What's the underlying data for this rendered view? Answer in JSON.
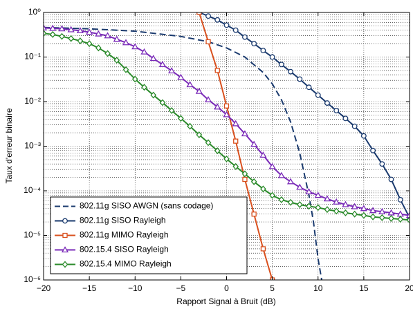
{
  "chart_data": {
    "type": "line",
    "x_label": "Rapport Signal à Bruit (dB)",
    "y_label": "Taux d'erreur binaire",
    "log_y": true,
    "grid": true,
    "minor_grid": true,
    "legend_loc": "lower left",
    "xlim": [
      -20,
      20
    ],
    "xticks": [
      {
        "value": -20,
        "label": "−20"
      },
      {
        "value": -15,
        "label": "−15"
      },
      {
        "value": -10,
        "label": "−10"
      },
      {
        "value": -5,
        "label": "−5"
      },
      0,
      5,
      10,
      15,
      20
    ],
    "ylim": [
      1e-06,
      1
    ],
    "yticks": [
      {
        "value": 1e-06,
        "label": "10⁻⁶"
      },
      {
        "value": 1e-05,
        "label": "10⁻⁵"
      },
      {
        "value": 0.0001,
        "label": "10⁻⁴"
      },
      {
        "value": 0.001,
        "label": "10⁻³"
      },
      {
        "value": 0.01,
        "label": "10⁻²"
      },
      {
        "value": 0.1,
        "label": "10⁻¹"
      },
      {
        "value": 1,
        "label": "10⁰"
      }
    ],
    "series": [
      {
        "name": "802.11g SISO AWGN (sans codage)",
        "color": "#1a3a6e",
        "dash": true,
        "marker": "none",
        "x": [
          -20,
          -15,
          -10,
          -5,
          -2,
          0,
          2,
          4,
          5,
          6,
          7,
          8,
          9,
          9.5,
          10,
          10.4
        ],
        "values": [
          0.46,
          0.43,
          0.38,
          0.29,
          0.22,
          0.16,
          0.1,
          0.045,
          0.025,
          0.011,
          0.0035,
          0.0007,
          8e-05,
          2e-05,
          3e-06,
          1e-06
        ]
      },
      {
        "name": "802.11g SISO Rayleigh",
        "color": "#1a3a6e",
        "dash": false,
        "marker": "circle",
        "x": [
          -3,
          -2,
          -1,
          0,
          1,
          2,
          3,
          4,
          5,
          6,
          7,
          8,
          9,
          10,
          11,
          12,
          13,
          14,
          15,
          16,
          17,
          18,
          19,
          20
        ],
        "values": [
          1,
          0.83,
          0.68,
          0.52,
          0.4,
          0.28,
          0.2,
          0.14,
          0.1,
          0.068,
          0.047,
          0.032,
          0.021,
          0.014,
          0.0093,
          0.0063,
          0.0042,
          0.0028,
          0.0017,
          0.0008,
          0.0004,
          0.00018,
          6.3e-05,
          2.5e-05
        ]
      },
      {
        "name": "802.11g MIMO Rayleigh",
        "color": "#d9501e",
        "dash": false,
        "marker": "square",
        "x": [
          -3,
          -2,
          -1,
          0,
          1,
          2,
          3,
          4,
          5
        ],
        "values": [
          1,
          0.22,
          0.05,
          0.008,
          0.0013,
          0.00018,
          3e-05,
          5e-06,
          1e-06
        ]
      },
      {
        "name": "802.15.4 SISO Rayleigh",
        "color": "#7a2ab8",
        "dash": false,
        "marker": "triangle",
        "x": [
          -20,
          -19,
          -18,
          -17,
          -16,
          -15,
          -14,
          -13,
          -12,
          -11,
          -10,
          -9,
          -8,
          -7,
          -6,
          -5,
          -4,
          -3,
          -2,
          -1,
          0,
          1,
          2,
          3,
          4,
          5,
          6,
          7,
          8,
          9,
          10,
          11,
          12,
          13,
          14,
          15,
          16,
          17,
          18,
          19,
          20
        ],
        "values": [
          0.45,
          0.44,
          0.43,
          0.41,
          0.39,
          0.36,
          0.33,
          0.3,
          0.25,
          0.21,
          0.17,
          0.13,
          0.093,
          0.068,
          0.049,
          0.035,
          0.024,
          0.017,
          0.011,
          0.0076,
          0.0051,
          0.0032,
          0.0019,
          0.0011,
          0.00063,
          0.00035,
          0.00022,
          0.00016,
          0.00012,
          9.5e-05,
          7.9e-05,
          6.6e-05,
          5.6e-05,
          4.9e-05,
          4.4e-05,
          4e-05,
          3.6e-05,
          3.4e-05,
          3.2e-05,
          3e-05,
          2.8e-05
        ]
      },
      {
        "name": "802.15.4 MIMO Rayleigh",
        "color": "#2a8a2a",
        "dash": false,
        "marker": "diamond",
        "x": [
          -20,
          -19,
          -18,
          -17,
          -16,
          -15,
          -14,
          -13,
          -12,
          -11,
          -10,
          -9,
          -8,
          -7,
          -6,
          -5,
          -4,
          -3,
          -2,
          -1,
          0,
          1,
          2,
          3,
          4,
          5,
          6,
          7,
          8,
          9,
          10,
          11,
          12,
          13,
          14,
          15,
          16,
          17,
          18,
          19,
          20
        ],
        "values": [
          0.34,
          0.32,
          0.29,
          0.26,
          0.23,
          0.2,
          0.16,
          0.12,
          0.085,
          0.052,
          0.032,
          0.021,
          0.014,
          0.0095,
          0.0063,
          0.0042,
          0.0028,
          0.0018,
          0.0012,
          0.00079,
          0.00052,
          0.00035,
          0.00024,
          0.00016,
          0.00011,
          7.9e-05,
          6.3e-05,
          5.5e-05,
          4.9e-05,
          4.5e-05,
          4.2e-05,
          3.8e-05,
          3.5e-05,
          3.2e-05,
          3e-05,
          2.8e-05,
          2.6e-05,
          2.5e-05,
          2.4e-05,
          2.3e-05,
          2.2e-05
        ]
      }
    ]
  }
}
